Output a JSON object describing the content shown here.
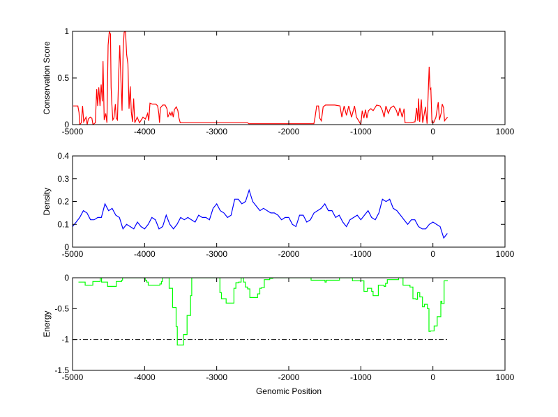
{
  "chart_data": [
    {
      "type": "line",
      "ylabel": "Conservation Score",
      "xlabel": "",
      "xlim": [
        -5000,
        1000
      ],
      "ylim": [
        0,
        1
      ],
      "xticks": [
        -5000,
        -4000,
        -3000,
        -2000,
        -1000,
        0,
        1000
      ],
      "xtick_labels": [
        "-5000",
        "-4000",
        "-3000",
        "-2000",
        "-1000",
        "0",
        "1000"
      ],
      "yticks": [
        0,
        0.5,
        1
      ],
      "ytick_labels": [
        "0",
        "0.5",
        "1"
      ],
      "color": "#ff0000",
      "points": [
        [
          -4990,
          0.2
        ],
        [
          -4926,
          0.2
        ],
        [
          -4910,
          0.13
        ],
        [
          -4900,
          0
        ],
        [
          -4878,
          0.02
        ],
        [
          -4861,
          0.2
        ],
        [
          -4845,
          0.03
        ],
        [
          -4813,
          0.08
        ],
        [
          -4797,
          0
        ],
        [
          -4781,
          0.06
        ],
        [
          -4755,
          0.08
        ],
        [
          -4732,
          0.07
        ],
        [
          -4716,
          0
        ],
        [
          -4684,
          0.02
        ],
        [
          -4665,
          0.38
        ],
        [
          -4652,
          0.2
        ],
        [
          -4636,
          0.4
        ],
        [
          -4619,
          0.2
        ],
        [
          -4603,
          0.43
        ],
        [
          -4587,
          0.25
        ],
        [
          -4577,
          0.68
        ],
        [
          -4561,
          0.05
        ],
        [
          -4539,
          0.12
        ],
        [
          -4523,
          0.02
        ],
        [
          -4506,
          0.85
        ],
        [
          -4490,
          1.0
        ],
        [
          -4474,
          0.97
        ],
        [
          -4465,
          0.4
        ],
        [
          -4455,
          0.23
        ],
        [
          -4442,
          0.05
        ],
        [
          -4426,
          0.07
        ],
        [
          -4406,
          0.22
        ],
        [
          -4394,
          0.07
        ],
        [
          -4377,
          0.05
        ],
        [
          -4361,
          0.5
        ],
        [
          -4345,
          0.85
        ],
        [
          -4329,
          0.5
        ],
        [
          -4313,
          0.15
        ],
        [
          -4297,
          0.82
        ],
        [
          -4284,
          0.99
        ],
        [
          -4265,
          1.0
        ],
        [
          -4249,
          0.75
        ],
        [
          -4232,
          0.65
        ],
        [
          -4216,
          0.17
        ],
        [
          -4200,
          0.41
        ],
        [
          -4184,
          0.13
        ],
        [
          -4168,
          0.03
        ],
        [
          -4152,
          0.28
        ],
        [
          -4136,
          0.02
        ],
        [
          -4103,
          0.08
        ],
        [
          -4071,
          0.02
        ],
        [
          -4023,
          0.08
        ],
        [
          -3990,
          0.06
        ],
        [
          -3958,
          0.12
        ],
        [
          -3942,
          0.04
        ],
        [
          -3926,
          0.23
        ],
        [
          -3893,
          0.22
        ],
        [
          -3845,
          0.22
        ],
        [
          -3819,
          0.2
        ],
        [
          -3803,
          0.12
        ],
        [
          -3793,
          0.02
        ],
        [
          -3781,
          0.18
        ],
        [
          -3748,
          0.21
        ],
        [
          -3716,
          0.21
        ],
        [
          -3690,
          0.17
        ],
        [
          -3677,
          0.08
        ],
        [
          -3651,
          0.13
        ],
        [
          -3635,
          0.1
        ],
        [
          -3619,
          0.14
        ],
        [
          -3603,
          0.08
        ],
        [
          -3587,
          0.16
        ],
        [
          -3561,
          0.19
        ],
        [
          -3539,
          0.15
        ],
        [
          -3523,
          0.07
        ],
        [
          -3506,
          0.02
        ],
        [
          -2571,
          0.02
        ],
        [
          -2555,
          0.01
        ],
        [
          -1652,
          0.01
        ],
        [
          -1635,
          0.08
        ],
        [
          -1613,
          0.2
        ],
        [
          -1587,
          0.2
        ],
        [
          -1571,
          0.07
        ],
        [
          -1548,
          0.04
        ],
        [
          -1523,
          0.19
        ],
        [
          -1490,
          0.21
        ],
        [
          -1361,
          0.21
        ],
        [
          -1290,
          0.2
        ],
        [
          -1264,
          0.08
        ],
        [
          -1232,
          0.2
        ],
        [
          -1200,
          0.1
        ],
        [
          -1168,
          0.2
        ],
        [
          -1129,
          0.08
        ],
        [
          -1087,
          0.2
        ],
        [
          -1061,
          0.08
        ],
        [
          -1029,
          0.04
        ],
        [
          -1000,
          0.0
        ],
        [
          -981,
          0.15
        ],
        [
          -958,
          0.07
        ],
        [
          -935,
          0.16
        ],
        [
          -916,
          0.07
        ],
        [
          -894,
          0.15
        ],
        [
          -861,
          0.17
        ],
        [
          -829,
          0.15
        ],
        [
          -781,
          0.21
        ],
        [
          -732,
          0.2
        ],
        [
          -700,
          0.15
        ],
        [
          -677,
          0.08
        ],
        [
          -652,
          0.2
        ],
        [
          -619,
          0.12
        ],
        [
          -587,
          0.18
        ],
        [
          -545,
          0.2
        ],
        [
          -506,
          0.15
        ],
        [
          -484,
          0.09
        ],
        [
          -458,
          0.18
        ],
        [
          -426,
          0.08
        ],
        [
          -400,
          0.17
        ],
        [
          -387,
          0.02
        ],
        [
          -313,
          0.02
        ],
        [
          -248,
          0.03
        ],
        [
          -226,
          0.18
        ],
        [
          -210,
          0.04
        ],
        [
          -200,
          0.28
        ],
        [
          -184,
          0.03
        ],
        [
          -161,
          0.27
        ],
        [
          -142,
          0.02
        ],
        [
          -103,
          0.19
        ],
        [
          -81,
          0.01
        ],
        [
          -52,
          0.62
        ],
        [
          -39,
          0.38
        ],
        [
          -29,
          0.39
        ],
        [
          -13,
          0.02
        ],
        [
          10,
          0.02
        ],
        [
          42,
          0.08
        ],
        [
          74,
          0.24
        ],
        [
          90,
          0.05
        ],
        [
          116,
          0.13
        ],
        [
          129,
          0.22
        ],
        [
          148,
          0.18
        ],
        [
          161,
          0.04
        ],
        [
          180,
          0.06
        ],
        [
          203,
          0.08
        ]
      ]
    },
    {
      "type": "line",
      "ylabel": "Density",
      "xlabel": "",
      "xlim": [
        -5000,
        1000
      ],
      "ylim": [
        0,
        0.4
      ],
      "xticks": [
        -5000,
        -4000,
        -3000,
        -2000,
        -1000,
        0,
        1000
      ],
      "xtick_labels": [
        "-5000",
        "-4000",
        "-3000",
        "-2000",
        "-1000",
        "0",
        "1000"
      ],
      "yticks": [
        0,
        0.1,
        0.2,
        0.3,
        0.4
      ],
      "ytick_labels": [
        "0",
        "0.1",
        "0.2",
        "0.3",
        "0.4"
      ],
      "color": "#0000ff",
      "points": [
        [
          -5000,
          0.09
        ],
        [
          -4950,
          0.11
        ],
        [
          -4900,
          0.13
        ],
        [
          -4850,
          0.16
        ],
        [
          -4800,
          0.15
        ],
        [
          -4750,
          0.12
        ],
        [
          -4700,
          0.12
        ],
        [
          -4650,
          0.13
        ],
        [
          -4600,
          0.13
        ],
        [
          -4550,
          0.19
        ],
        [
          -4500,
          0.16
        ],
        [
          -4450,
          0.17
        ],
        [
          -4400,
          0.14
        ],
        [
          -4350,
          0.13
        ],
        [
          -4300,
          0.08
        ],
        [
          -4250,
          0.1
        ],
        [
          -4200,
          0.09
        ],
        [
          -4150,
          0.08
        ],
        [
          -4100,
          0.11
        ],
        [
          -4050,
          0.09
        ],
        [
          -4000,
          0.08
        ],
        [
          -3950,
          0.1
        ],
        [
          -3900,
          0.13
        ],
        [
          -3850,
          0.12
        ],
        [
          -3800,
          0.08
        ],
        [
          -3750,
          0.09
        ],
        [
          -3700,
          0.14
        ],
        [
          -3650,
          0.1
        ],
        [
          -3600,
          0.08
        ],
        [
          -3550,
          0.1
        ],
        [
          -3500,
          0.13
        ],
        [
          -3450,
          0.12
        ],
        [
          -3400,
          0.13
        ],
        [
          -3350,
          0.12
        ],
        [
          -3300,
          0.11
        ],
        [
          -3250,
          0.14
        ],
        [
          -3200,
          0.13
        ],
        [
          -3150,
          0.13
        ],
        [
          -3100,
          0.12
        ],
        [
          -3050,
          0.17
        ],
        [
          -3000,
          0.19
        ],
        [
          -2950,
          0.16
        ],
        [
          -2900,
          0.15
        ],
        [
          -2850,
          0.13
        ],
        [
          -2800,
          0.14
        ],
        [
          -2750,
          0.21
        ],
        [
          -2700,
          0.21
        ],
        [
          -2650,
          0.19
        ],
        [
          -2600,
          0.2
        ],
        [
          -2550,
          0.25
        ],
        [
          -2500,
          0.2
        ],
        [
          -2450,
          0.18
        ],
        [
          -2400,
          0.16
        ],
        [
          -2350,
          0.17
        ],
        [
          -2300,
          0.16
        ],
        [
          -2250,
          0.15
        ],
        [
          -2200,
          0.15
        ],
        [
          -2150,
          0.14
        ],
        [
          -2100,
          0.12
        ],
        [
          -2050,
          0.13
        ],
        [
          -2000,
          0.13
        ],
        [
          -1950,
          0.1
        ],
        [
          -1900,
          0.09
        ],
        [
          -1850,
          0.14
        ],
        [
          -1800,
          0.14
        ],
        [
          -1750,
          0.11
        ],
        [
          -1700,
          0.12
        ],
        [
          -1650,
          0.15
        ],
        [
          -1600,
          0.16
        ],
        [
          -1550,
          0.17
        ],
        [
          -1500,
          0.19
        ],
        [
          -1450,
          0.16
        ],
        [
          -1400,
          0.16
        ],
        [
          -1350,
          0.13
        ],
        [
          -1300,
          0.14
        ],
        [
          -1250,
          0.11
        ],
        [
          -1200,
          0.09
        ],
        [
          -1150,
          0.12
        ],
        [
          -1100,
          0.13
        ],
        [
          -1050,
          0.14
        ],
        [
          -1000,
          0.12
        ],
        [
          -950,
          0.14
        ],
        [
          -900,
          0.16
        ],
        [
          -850,
          0.13
        ],
        [
          -800,
          0.12
        ],
        [
          -750,
          0.15
        ],
        [
          -700,
          0.21
        ],
        [
          -650,
          0.2
        ],
        [
          -600,
          0.21
        ],
        [
          -550,
          0.17
        ],
        [
          -500,
          0.16
        ],
        [
          -450,
          0.14
        ],
        [
          -400,
          0.12
        ],
        [
          -350,
          0.1
        ],
        [
          -300,
          0.12
        ],
        [
          -250,
          0.12
        ],
        [
          -200,
          0.09
        ],
        [
          -150,
          0.08
        ],
        [
          -100,
          0.08
        ],
        [
          -50,
          0.1
        ],
        [
          0,
          0.11
        ],
        [
          50,
          0.1
        ],
        [
          100,
          0.09
        ],
        [
          150,
          0.04
        ],
        [
          200,
          0.06
        ]
      ]
    },
    {
      "type": "line",
      "ylabel": "Energy",
      "xlabel": "Genomic Position",
      "xlim": [
        -5000,
        1000
      ],
      "ylim": [
        -1.5,
        0
      ],
      "xticks": [
        -5000,
        -4000,
        -3000,
        -2000,
        -1000,
        0,
        1000
      ],
      "xtick_labels": [
        "-5000",
        "-4000",
        "-3000",
        "-2000",
        "-1000",
        "0",
        "1000"
      ],
      "yticks": [
        0,
        -0.5,
        -1,
        -1.5
      ],
      "ytick_labels": [
        "0",
        "-0.5",
        "-1",
        "-1.5"
      ],
      "color": "#00ff00",
      "step_segments": [
        [
          -4918,
          -0.07
        ],
        [
          -4825,
          -0.12
        ],
        [
          -4718,
          -0.06
        ],
        [
          -4617,
          0
        ],
        [
          -4597,
          -0.07
        ],
        [
          -4514,
          -0.14
        ],
        [
          -4393,
          -0.06
        ],
        [
          -4320,
          -0.04
        ],
        [
          -4306,
          0
        ],
        [
          -3992,
          -0.04
        ],
        [
          -3971,
          -0.07
        ],
        [
          -3950,
          -0.12
        ],
        [
          -3788,
          -0.1
        ],
        [
          -3767,
          -0.06
        ],
        [
          -3753,
          0
        ],
        [
          -3660,
          -0.17
        ],
        [
          -3612,
          -0.48
        ],
        [
          -3563,
          -0.79
        ],
        [
          -3546,
          -1.09
        ],
        [
          -3460,
          -0.92
        ],
        [
          -3411,
          -0.61
        ],
        [
          -3363,
          -0.29
        ],
        [
          -3346,
          0
        ],
        [
          -2955,
          -0.24
        ],
        [
          -2934,
          -0.34
        ],
        [
          -2869,
          -0.41
        ],
        [
          -2761,
          -0.17
        ],
        [
          -2734,
          -0.08
        ],
        [
          -2696,
          -0.07
        ],
        [
          -2661,
          0
        ],
        [
          -2627,
          -0.07
        ],
        [
          -2603,
          -0.15
        ],
        [
          -2571,
          -0.18
        ],
        [
          -2540,
          -0.32
        ],
        [
          -2433,
          -0.26
        ],
        [
          -2402,
          -0.17
        ],
        [
          -2378,
          -0.16
        ],
        [
          -2340,
          -0.03
        ],
        [
          -2264,
          -0.01
        ],
        [
          -2222,
          0
        ],
        [
          -1690,
          -0.04
        ],
        [
          -1497,
          -0.07
        ],
        [
          -1479,
          -0.04
        ],
        [
          -1296,
          0
        ],
        [
          -1116,
          -0.05
        ],
        [
          -957,
          -0.22
        ],
        [
          -909,
          -0.17
        ],
        [
          -850,
          -0.22
        ],
        [
          -830,
          -0.29
        ],
        [
          -757,
          -0.12
        ],
        [
          -677,
          -0.14
        ],
        [
          -657,
          -0.09
        ],
        [
          -633,
          -0.03
        ],
        [
          -477,
          0
        ],
        [
          -415,
          -0.12
        ],
        [
          -318,
          -0.15
        ],
        [
          -277,
          -0.34
        ],
        [
          -235,
          -0.35
        ],
        [
          -214,
          -0.24
        ],
        [
          -183,
          -0.31
        ],
        [
          -145,
          -0.47
        ],
        [
          -118,
          -0.43
        ],
        [
          -76,
          -0.5
        ],
        [
          -55,
          -0.87
        ],
        [
          -35,
          -0.86
        ],
        [
          17,
          -0.78
        ],
        [
          59,
          -0.63
        ],
        [
          110,
          -0.38
        ],
        [
          124,
          -0.42
        ],
        [
          155,
          -0.05
        ]
      ],
      "step_end": 207,
      "reference_line": {
        "y": -1,
        "x_range": [
          -5000,
          200
        ],
        "style": "dash-dot",
        "color": "#000000"
      }
    }
  ]
}
